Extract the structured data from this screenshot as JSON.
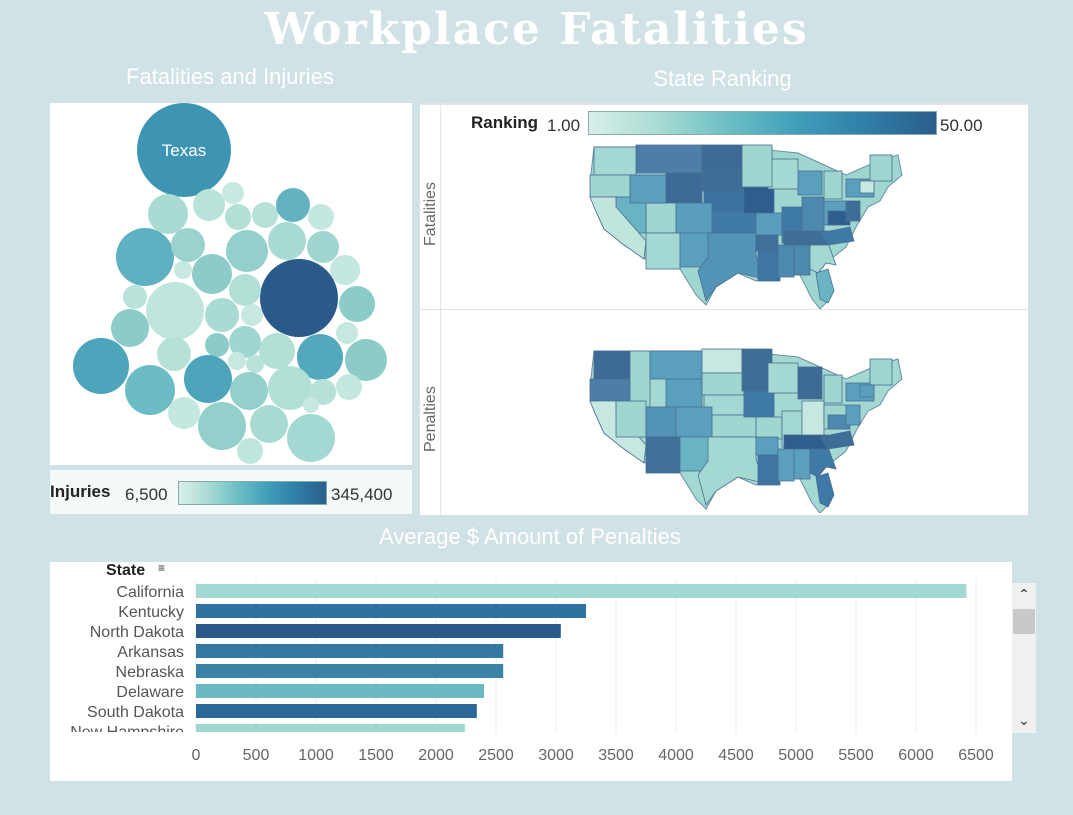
{
  "dashboard": {
    "title": "Workplace Fatalities"
  },
  "bubble_panel": {
    "title": "Fatalities and Injuries",
    "highlight_label": "Texas"
  },
  "injuries_legend": {
    "title": "Injuries",
    "min": "6,500",
    "max": "345,400"
  },
  "ranking_panel": {
    "title": "State Ranking",
    "legend_title": "Ranking",
    "legend_min": "1.00",
    "legend_max": "50.00",
    "row1_label": "Fatalities",
    "row2_label": "Penalties"
  },
  "bar_panel": {
    "title": "Average $ Amount of Penalties",
    "column_header": "State",
    "sort_icon": "sort-descending-icon"
  },
  "chart_data": {
    "type": "bar",
    "orientation": "horizontal",
    "categories": [
      "California",
      "Kentucky",
      "North Dakota",
      "Arkansas",
      "Nebraska",
      "Delaware",
      "South Dakota",
      "New Hampshire"
    ],
    "values": [
      6420,
      3250,
      3040,
      2560,
      2560,
      2400,
      2340,
      2240
    ],
    "colors": [
      "#a3d8d3",
      "#2e73a0",
      "#2a5a8a",
      "#3379a2",
      "#3a82a6",
      "#6bb9c4",
      "#2c6897",
      "#9fd6cf"
    ],
    "xlim": [
      0,
      6750
    ],
    "ticks": [
      0,
      500,
      1000,
      1500,
      2000,
      2500,
      3000,
      3500,
      4000,
      4500,
      5000,
      5500,
      6000,
      6500
    ],
    "grid": true
  }
}
